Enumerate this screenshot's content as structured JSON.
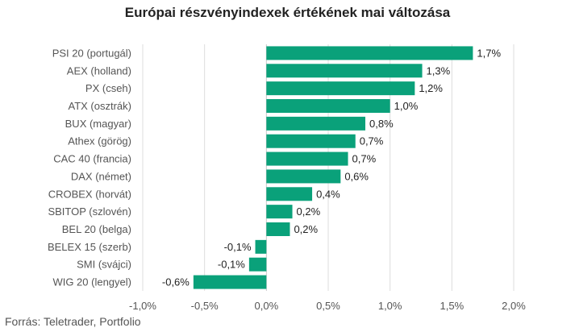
{
  "chart_data": {
    "type": "bar",
    "orientation": "horizontal",
    "title": "Európai részvényindexek értékének mai változása",
    "source": "Forrás: Teletrader, Portfolio",
    "color": "#0aa17a",
    "grid": true,
    "xlim": [
      -1.0,
      2.0
    ],
    "ticks": [
      {
        "value": -1.0,
        "label": "-1,0%"
      },
      {
        "value": -0.5,
        "label": "-0,5%"
      },
      {
        "value": 0.0,
        "label": "0,0%"
      },
      {
        "value": 0.5,
        "label": "0,5%"
      },
      {
        "value": 1.0,
        "label": "1,0%"
      },
      {
        "value": 1.5,
        "label": "1,5%"
      },
      {
        "value": 2.0,
        "label": "2,0%"
      }
    ],
    "categories": [
      "PSI 20 (portugál)",
      "AEX (holland)",
      "PX (cseh)",
      "ATX (osztrák)",
      "BUX (magyar)",
      "Athex (görög)",
      "CAC 40 (francia)",
      "DAX (német)",
      "CROBEX (horvát)",
      "SBITOP (szlovén)",
      "BEL 20 (belga)",
      "BELEX 15 (szerb)",
      "SMI (svájci)",
      "WIG 20 (lengyel)"
    ],
    "values": [
      1.67,
      1.26,
      1.2,
      1.0,
      0.8,
      0.72,
      0.66,
      0.6,
      0.37,
      0.21,
      0.19,
      -0.09,
      -0.14,
      -0.59
    ],
    "data_labels": [
      "1,7%",
      "1,3%",
      "1,2%",
      "1,0%",
      "0,8%",
      "0,7%",
      "0,7%",
      "0,6%",
      "0,4%",
      "0,2%",
      "0,2%",
      "-0,1%",
      "-0,1%",
      "-0,6%"
    ]
  }
}
